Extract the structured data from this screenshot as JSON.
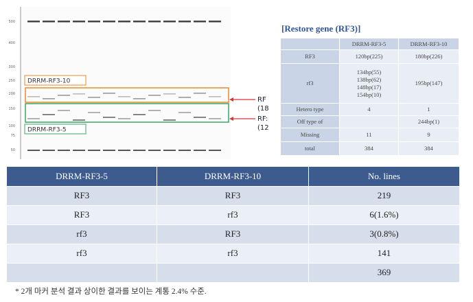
{
  "gel": {
    "axis_labels": [
      "500",
      "400",
      "300",
      "250",
      "200",
      "150",
      "100",
      "75",
      "50"
    ],
    "box_labels": [
      "DRRM-RF3-10",
      "DRRM-RF3-5"
    ],
    "arrow_labels": [
      "RF",
      "(18",
      "RF:",
      "(12"
    ]
  },
  "small_table": {
    "title": "[Restore gene (RF3)]",
    "header": [
      "DRRM-RF3-5",
      "DRRM-RF3-10"
    ],
    "rows": [
      [
        "RF3",
        "120bp(225)",
        "180bp(226)"
      ],
      [
        "rf3",
        "134bp(55)\n138bp(62)\n148bp(17)\n154bp(10)",
        "195bp(147)"
      ],
      [
        "Hetero type",
        "4",
        "1"
      ],
      [
        "Off type of",
        "",
        "244bp(1)"
      ],
      [
        "Missing",
        "11",
        "9"
      ],
      [
        "total",
        "384",
        "384"
      ]
    ]
  },
  "table": {
    "header": [
      "DRRM-RF3-5",
      "DRRM-RF3-10",
      "No. lines"
    ],
    "rows": [
      [
        "RF3",
        "RF3",
        "219"
      ],
      [
        "RF3",
        "rf3",
        "6(1.6%)"
      ],
      [
        "rf3",
        "RF3",
        "3(0.8%)"
      ],
      [
        "rf3",
        "rf3",
        "141"
      ],
      [
        "",
        "",
        "369"
      ]
    ]
  },
  "footnote": "* 2개 마커 분석 결과 상이한 결과를 보이는 계통 2.4% 수준."
}
